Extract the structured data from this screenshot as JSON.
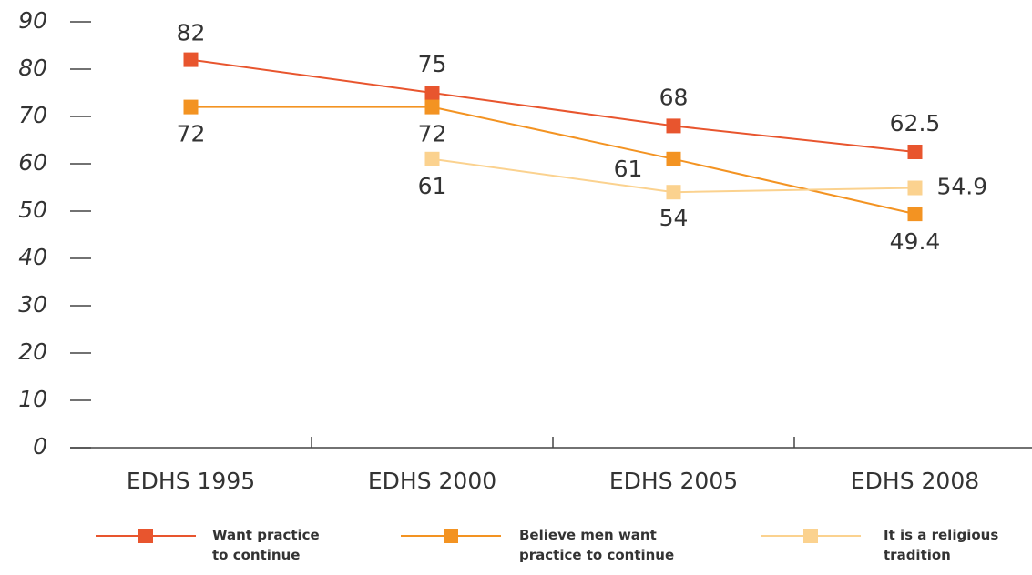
{
  "chart_data": {
    "type": "line",
    "categories": [
      "EDHS 1995",
      "EDHS 2000",
      "EDHS 2005",
      "EDHS 2008"
    ],
    "series": [
      {
        "name": "Want practice to continue",
        "color": "#e8552e",
        "values": [
          82,
          75,
          68,
          62.5
        ]
      },
      {
        "name": "Believe men want practice to continue",
        "color": "#f39322",
        "values": [
          72,
          72,
          61,
          49.4
        ]
      },
      {
        "name": "It is a religious tradition",
        "color": "#fbd28f",
        "values": [
          null,
          61,
          54,
          54.9
        ]
      }
    ],
    "ylim": [
      0,
      90
    ],
    "yticks": [
      0,
      10,
      20,
      30,
      40,
      50,
      60,
      70,
      80,
      90
    ]
  }
}
